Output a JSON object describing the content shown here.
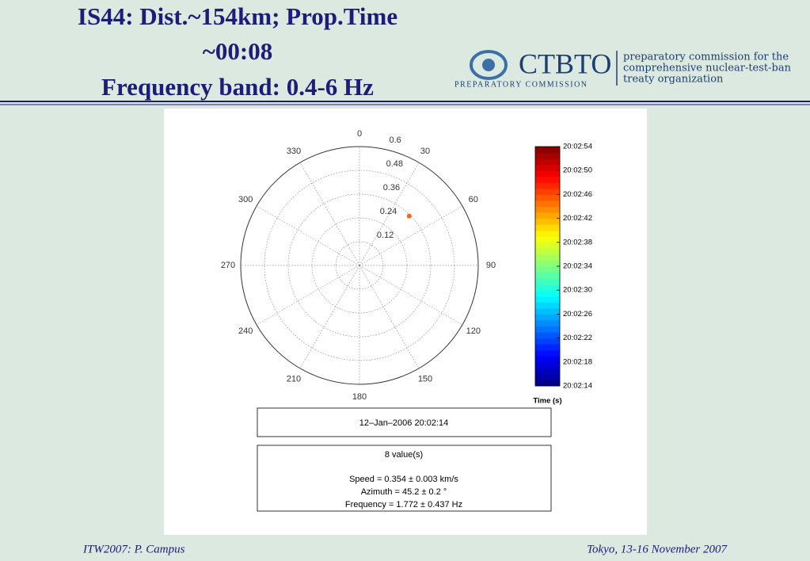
{
  "slide": {
    "title_lines": [
      "IS44: Dist.~154km; Prop.Time",
      "~00:08",
      "Frequency band: 0.4-6 Hz"
    ],
    "logo": {
      "name": "CTBTO",
      "subtitle": "PREPARATORY COMMISSION",
      "tagline": [
        "preparatory commission for the",
        "comprehensive nuclear-test-ban",
        "treaty organization"
      ]
    },
    "footer": {
      "left": "ITW2007: P. Campus",
      "right": "Tokyo, 13-16 November 2007"
    }
  },
  "chart_data": {
    "type": "polar",
    "rlim": [
      0,
      0.6
    ],
    "rticks": [
      0.12,
      0.24,
      0.36,
      0.48,
      0.6
    ],
    "thetaticks": [
      0,
      30,
      60,
      90,
      120,
      150,
      180,
      210,
      240,
      270,
      300,
      330
    ],
    "series": [
      {
        "color": "#ef6a1e",
        "theta": [
          45.2
        ],
        "values": [
          0.354
        ]
      }
    ],
    "colorbar": {
      "label": "Time (s)",
      "lim": [
        14,
        54
      ],
      "ticks": [
        {
          "value": 14,
          "label": "20:02:14"
        },
        {
          "value": 18,
          "label": "20:02:18"
        },
        {
          "value": 22,
          "label": "20:02:22"
        },
        {
          "value": 26,
          "label": "20:02:26"
        },
        {
          "value": 30,
          "label": "20:02:30"
        },
        {
          "value": 34,
          "label": "20:02:34"
        },
        {
          "value": 38,
          "label": "20:02:38"
        },
        {
          "value": 42,
          "label": "20:02:42"
        },
        {
          "value": 46,
          "label": "20:02:46"
        },
        {
          "value": 50,
          "label": "20:02:50"
        },
        {
          "value": 54,
          "label": "20:02:54"
        }
      ]
    },
    "info": {
      "date": "12–Jan–2006 20:02:14",
      "count": "8 value(s)",
      "lines": [
        "Speed = 0.354 ± 0.003 km/s",
        "Azimuth = 45.2 ± 0.2 °",
        "Frequency = 1.772 ± 0.437 Hz"
      ]
    }
  }
}
